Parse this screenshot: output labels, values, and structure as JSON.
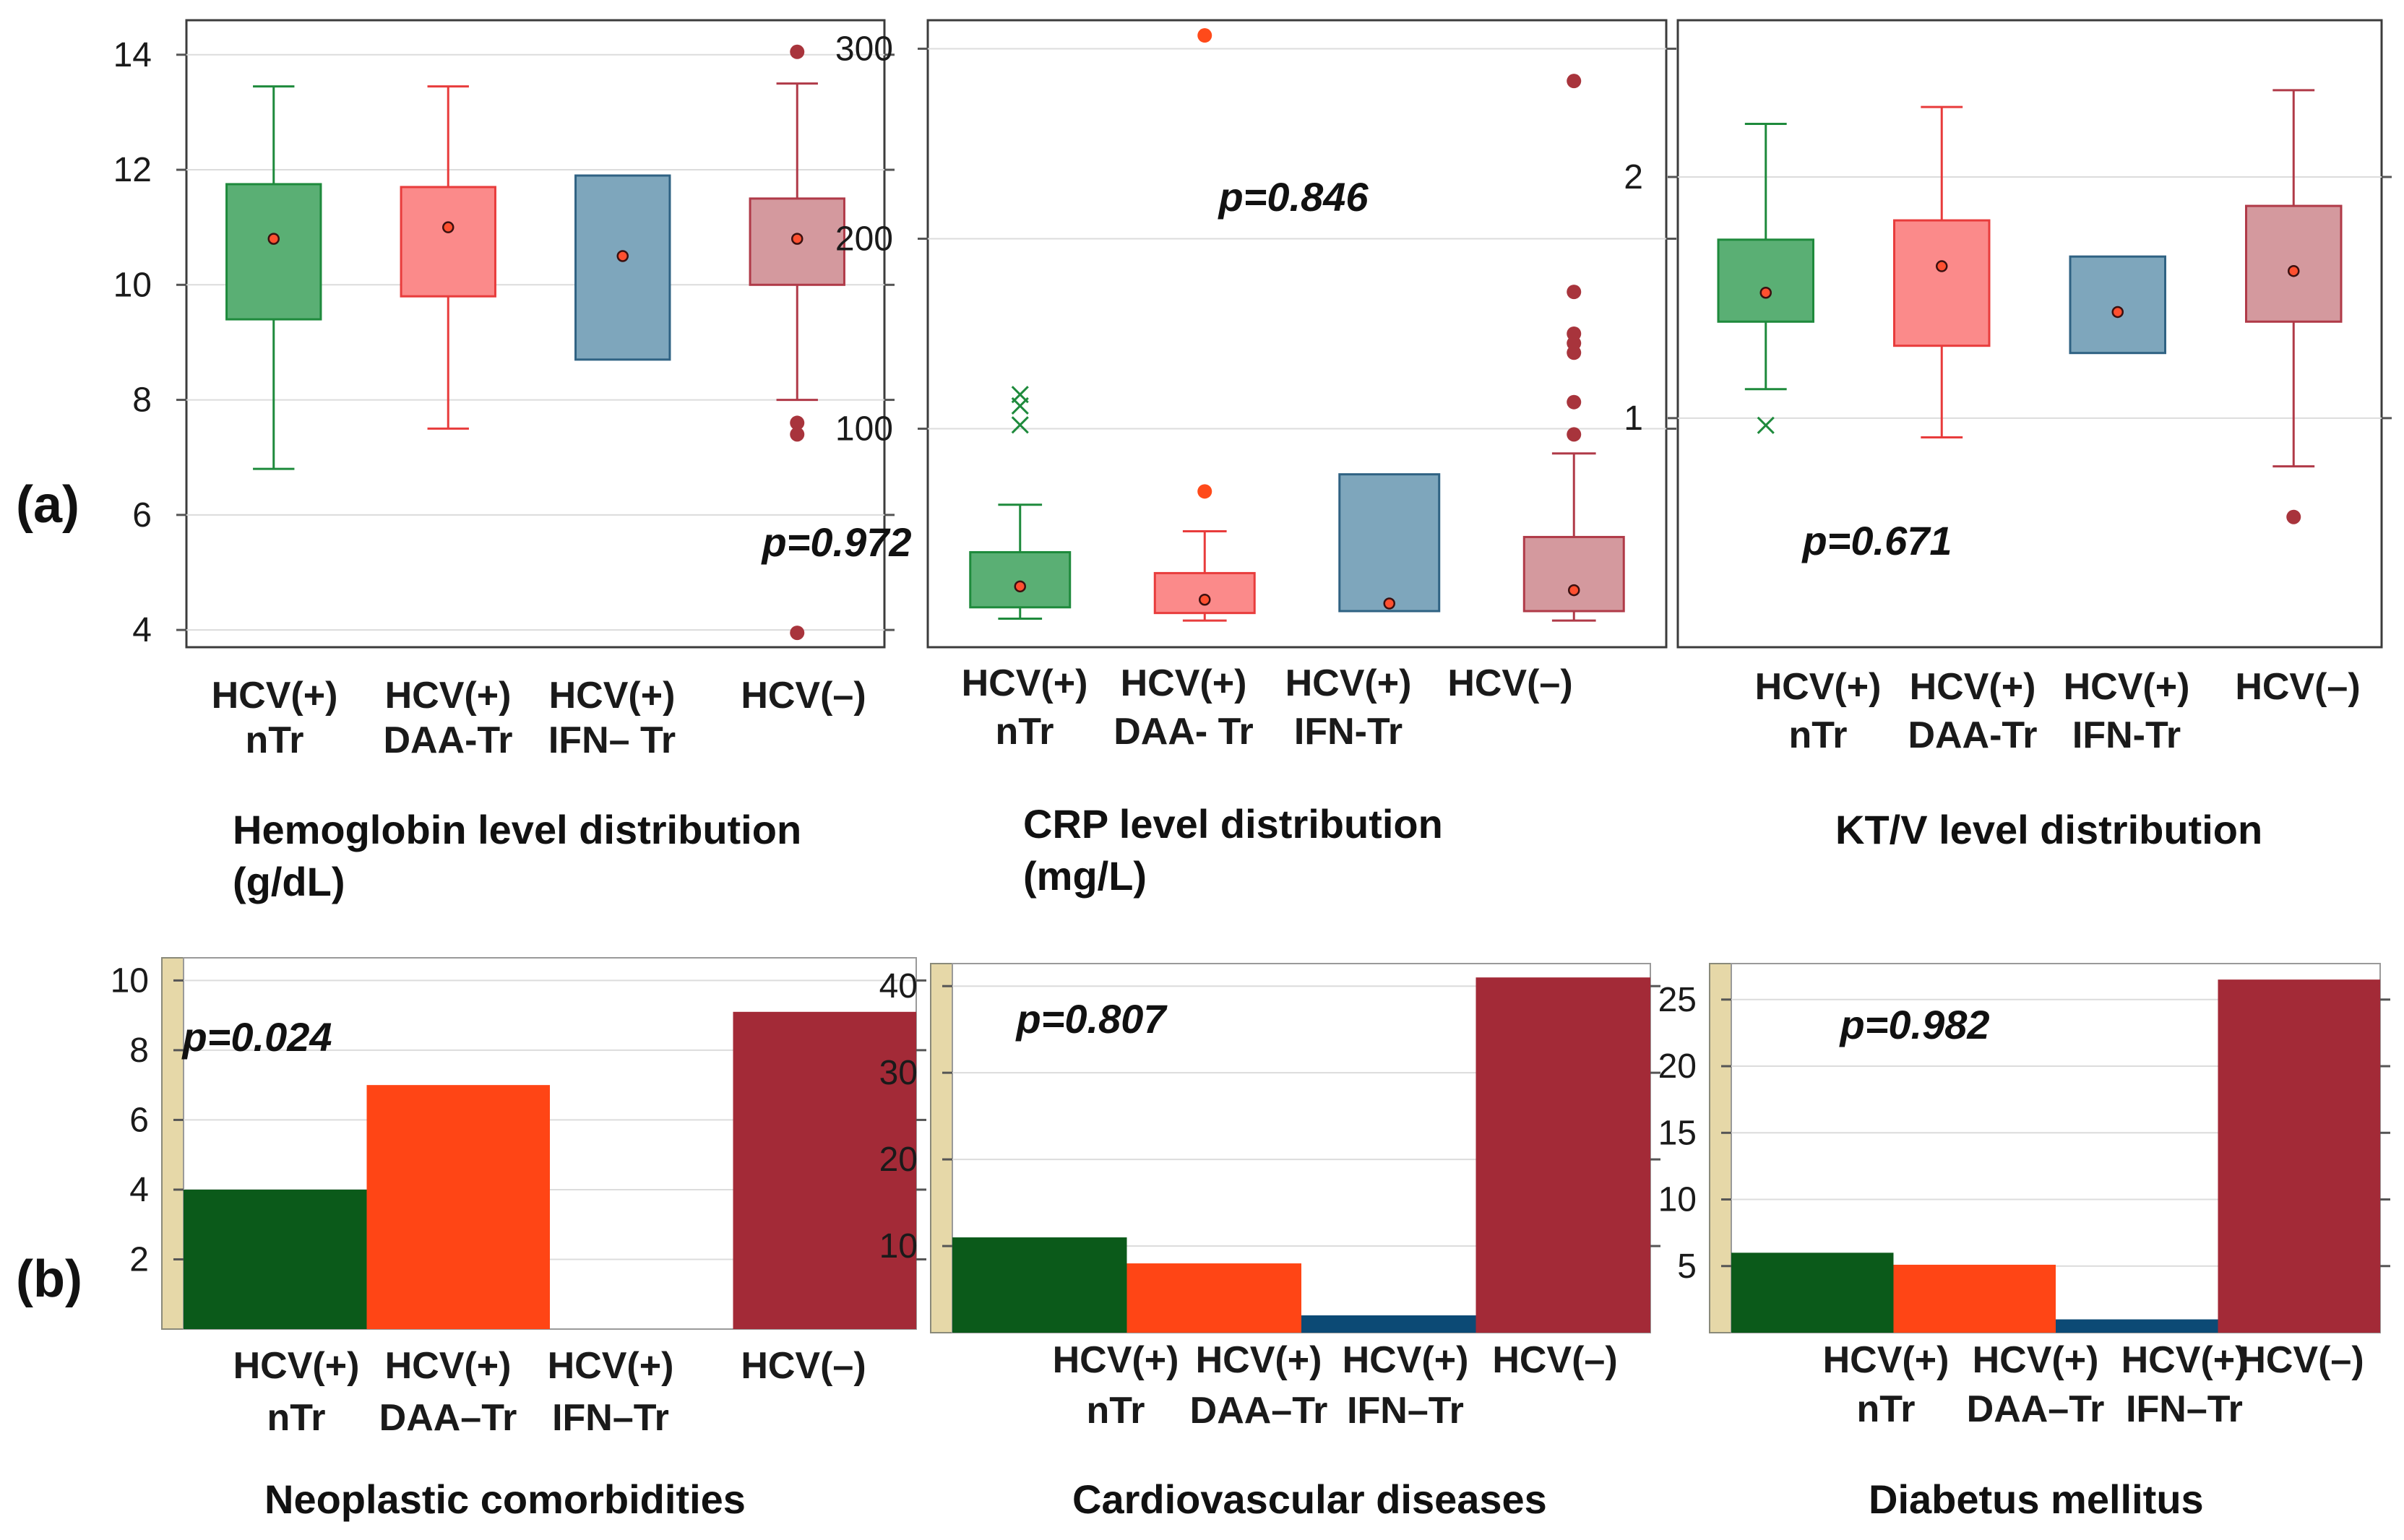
{
  "panel_labels": {
    "a": "(a)",
    "b": "(b)"
  },
  "chart_data": [
    {
      "type": "box",
      "caption": [
        "Hemoglobin level distribution",
        "(g/dL)"
      ],
      "p_value": "p=0.972",
      "ylim": [
        3.7,
        14.6
      ],
      "yticks": [
        4,
        6,
        8,
        10,
        12,
        14
      ],
      "categories": [
        [
          "HCV(+)",
          "nTr"
        ],
        [
          "HCV(+)",
          "DAA-Tr"
        ],
        [
          "HCV(+)",
          "IFN– Tr"
        ],
        [
          "HCV(–)"
        ]
      ],
      "colors": {
        "fill": [
          "#5aaf74",
          "#fb8a8a",
          "#7ea6bc",
          "#d4999e"
        ],
        "line": [
          "#1e8a3c",
          "#e83c3c",
          "#2f6283",
          "#b03a48"
        ]
      },
      "boxes": [
        {
          "whisker_low": 6.8,
          "q1": 9.4,
          "q3": 11.75,
          "whisker_high": 13.45,
          "mean": 10.8
        },
        {
          "whisker_low": 7.5,
          "q1": 9.8,
          "q3": 11.7,
          "whisker_high": 13.45,
          "mean": 11.0
        },
        {
          "whisker_low": null,
          "q1": 8.7,
          "q3": 11.9,
          "whisker_high": null,
          "mean": 10.5
        },
        {
          "whisker_low": 8.0,
          "q1": 10.0,
          "q3": 11.5,
          "whisker_high": 13.5,
          "mean": 10.8
        }
      ],
      "outliers": [
        {
          "category": 3,
          "value": 14.05,
          "marker": "dot"
        },
        {
          "category": 3,
          "value": 7.6,
          "marker": "dot"
        },
        {
          "category": 3,
          "value": 7.4,
          "marker": "dot"
        },
        {
          "category": 3,
          "value": 3.95,
          "marker": "dot"
        }
      ]
    },
    {
      "type": "box",
      "caption": [
        "CRP level distribution",
        "(mg/L)"
      ],
      "p_value": "p=0.846",
      "ylim": [
        -15,
        315
      ],
      "yticks": [
        100,
        200,
        300
      ],
      "categories": [
        [
          "HCV(+)",
          "nTr"
        ],
        [
          "HCV(+)",
          "DAA- Tr"
        ],
        [
          "HCV(+)",
          "IFN-Tr"
        ],
        [
          "HCV(–)"
        ]
      ],
      "colors": {
        "fill": [
          "#5aaf74",
          "#fb8a8a",
          "#7ea6bc",
          "#d4999e"
        ],
        "line": [
          "#1e8a3c",
          "#e83c3c",
          "#2f6283",
          "#b03a48"
        ]
      },
      "boxes": [
        {
          "whisker_low": 0,
          "q1": 6,
          "q3": 35,
          "whisker_high": 60,
          "mean": 17
        },
        {
          "whisker_low": -1,
          "q1": 3,
          "q3": 24,
          "whisker_high": 46,
          "mean": 10
        },
        {
          "whisker_low": null,
          "q1": 4,
          "q3": 76,
          "whisker_high": null,
          "mean": 8
        },
        {
          "whisker_low": -1,
          "q1": 4,
          "q3": 43,
          "whisker_high": 87,
          "mean": 15
        }
      ],
      "outliers": [
        {
          "category": 0,
          "value": 118,
          "marker": "x"
        },
        {
          "category": 0,
          "value": 112,
          "marker": "x"
        },
        {
          "category": 0,
          "value": 102,
          "marker": "x"
        },
        {
          "category": 1,
          "value": 67,
          "marker": "dot"
        },
        {
          "category": 1,
          "value": 307,
          "marker": "dot"
        },
        {
          "category": 3,
          "value": 97,
          "marker": "dot"
        },
        {
          "category": 3,
          "value": 114,
          "marker": "dot"
        },
        {
          "category": 3,
          "value": 140,
          "marker": "dot"
        },
        {
          "category": 3,
          "value": 145,
          "marker": "dot"
        },
        {
          "category": 3,
          "value": 150,
          "marker": "dot"
        },
        {
          "category": 3,
          "value": 172,
          "marker": "dot"
        },
        {
          "category": 3,
          "value": 283,
          "marker": "dot"
        }
      ]
    },
    {
      "type": "box",
      "caption": [
        "KT/V level distribution"
      ],
      "p_value": "p=0.671",
      "ylim": [
        0.05,
        2.65
      ],
      "yticks": [
        1,
        2
      ],
      "categories": [
        [
          "HCV(+)",
          "nTr"
        ],
        [
          "HCV(+)",
          "DAA-Tr"
        ],
        [
          "HCV(+)",
          "IFN-Tr"
        ],
        [
          "HCV(–)"
        ]
      ],
      "colors": {
        "fill": [
          "#5aaf74",
          "#fb8a8a",
          "#7ea6bc",
          "#d4999e"
        ],
        "line": [
          "#1e8a3c",
          "#e83c3c",
          "#2f6283",
          "#b03a48"
        ]
      },
      "boxes": [
        {
          "whisker_low": 1.12,
          "q1": 1.4,
          "q3": 1.74,
          "whisker_high": 2.22,
          "mean": 1.52
        },
        {
          "whisker_low": 0.92,
          "q1": 1.3,
          "q3": 1.82,
          "whisker_high": 2.29,
          "mean": 1.63
        },
        {
          "whisker_low": null,
          "q1": 1.27,
          "q3": 1.67,
          "whisker_high": null,
          "mean": 1.44
        },
        {
          "whisker_low": 0.8,
          "q1": 1.4,
          "q3": 1.88,
          "whisker_high": 2.36,
          "mean": 1.61
        }
      ],
      "outliers": [
        {
          "category": 0,
          "value": 0.97,
          "marker": "x"
        },
        {
          "category": 3,
          "value": 0.59,
          "marker": "dot"
        }
      ]
    },
    {
      "type": "bar",
      "caption": [
        "Neoplastic comorbidities"
      ],
      "p_value": "p=0.024",
      "ylim": [
        0,
        10.65
      ],
      "yticks": [
        2,
        4,
        6,
        8,
        10
      ],
      "categories": [
        [
          "HCV(+)",
          "nTr"
        ],
        [
          "HCV(+)",
          "DAA–Tr"
        ],
        [
          "HCV(+)",
          "IFN–Tr"
        ],
        [
          "HCV(–)"
        ]
      ],
      "values": [
        4,
        7,
        0,
        9.1
      ],
      "colors": [
        "#0b5a1a",
        "#ff4515",
        "#0c4a75",
        "#a32a37"
      ]
    },
    {
      "type": "bar",
      "caption": [
        "Cardiovascular diseases"
      ],
      "p_value": "p=0.807",
      "ylim": [
        0,
        42.6
      ],
      "yticks": [
        10,
        20,
        30,
        40
      ],
      "categories": [
        [
          "HCV(+)",
          "nTr"
        ],
        [
          "HCV(+)",
          "DAA–Tr"
        ],
        [
          "HCV(+)",
          "IFN–Tr"
        ],
        [
          "HCV(–)"
        ]
      ],
      "values": [
        11,
        8,
        2,
        41
      ],
      "colors": [
        "#0b5a1a",
        "#ff4515",
        "#0c4a75",
        "#a32a37"
      ]
    },
    {
      "type": "bar",
      "caption": [
        "Diabetus mellitus"
      ],
      "p_value": "p=0.982",
      "ylim": [
        0,
        27.7
      ],
      "yticks": [
        5,
        10,
        15,
        20,
        25
      ],
      "categories": [
        [
          "HCV(+)",
          "nTr"
        ],
        [
          "HCV(+)",
          "DAA–Tr"
        ],
        [
          "HCV(+)",
          "IFN–Tr"
        ],
        [
          "HCV(–)"
        ]
      ],
      "values": [
        6,
        5.1,
        1,
        26.5
      ],
      "colors": [
        "#0b5a1a",
        "#ff4515",
        "#0c4a75",
        "#a32a37"
      ]
    }
  ]
}
